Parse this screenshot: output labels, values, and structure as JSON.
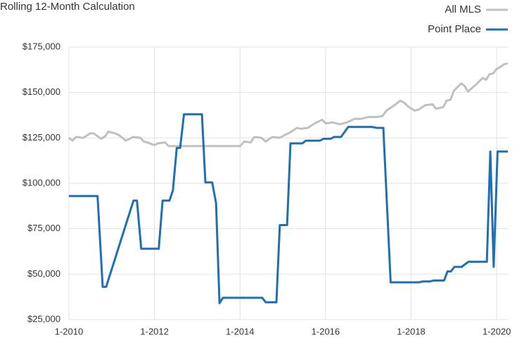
{
  "chart_data": {
    "type": "line",
    "title": "Rolling 12-Month Calculation",
    "xlim": [
      2010,
      2020.26
    ],
    "xticks": [
      {
        "value": 2010,
        "label": "1-2010"
      },
      {
        "value": 2012,
        "label": "1-2012"
      },
      {
        "value": 2014,
        "label": "1-2014"
      },
      {
        "value": 2016,
        "label": "1-2016"
      },
      {
        "value": 2018,
        "label": "1-2018"
      },
      {
        "value": 2020,
        "label": "1-2020"
      }
    ],
    "ylim": [
      25000,
      175000
    ],
    "yticks": [
      {
        "value": 25000,
        "label": "$25,000"
      },
      {
        "value": 50000,
        "label": "$50,000"
      },
      {
        "value": 75000,
        "label": "$75,000"
      },
      {
        "value": 100000,
        "label": "$100,000"
      },
      {
        "value": 125000,
        "label": "$125,000"
      },
      {
        "value": 150000,
        "label": "$150,000"
      },
      {
        "value": 175000,
        "label": "$175,000"
      }
    ],
    "grid": true,
    "legend": "top-right",
    "series": [
      {
        "name": "All MLS",
        "color": "#c0c0c0",
        "x": [
          2010.0,
          2010.08,
          2010.17,
          2010.33,
          2010.5,
          2010.58,
          2010.75,
          2010.85,
          2010.92,
          2011.08,
          2011.17,
          2011.33,
          2011.42,
          2011.5,
          2011.67,
          2011.75,
          2011.83,
          2012.0,
          2012.08,
          2012.25,
          2012.33,
          2012.5,
          2014.0,
          2014.1,
          2014.25,
          2014.33,
          2014.5,
          2014.6,
          2014.75,
          2014.92,
          2015.08,
          2015.17,
          2015.33,
          2015.42,
          2015.58,
          2015.75,
          2015.92,
          2016.0,
          2016.17,
          2016.33,
          2016.5,
          2016.67,
          2016.83,
          2017.0,
          2017.17,
          2017.33,
          2017.42,
          2017.58,
          2017.75,
          2017.83,
          2017.92,
          2018.08,
          2018.17,
          2018.33,
          2018.5,
          2018.58,
          2018.75,
          2018.83,
          2018.92,
          2019.0,
          2019.17,
          2019.25,
          2019.33,
          2019.5,
          2019.67,
          2019.75,
          2019.83,
          2019.92,
          2020.0,
          2020.08,
          2020.17,
          2020.26
        ],
        "values": [
          125000,
          123500,
          125500,
          125000,
          127500,
          127500,
          124500,
          126000,
          128500,
          127500,
          126500,
          123500,
          124500,
          125500,
          125000,
          123000,
          122500,
          121000,
          122000,
          122500,
          120500,
          120500,
          120500,
          123000,
          122500,
          125500,
          125000,
          123000,
          125500,
          125000,
          127000,
          128000,
          130500,
          130000,
          130500,
          133000,
          135000,
          133000,
          133500,
          132500,
          133500,
          135500,
          135500,
          136500,
          136500,
          137000,
          140000,
          142500,
          145500,
          144500,
          142500,
          140000,
          140500,
          143000,
          143500,
          141000,
          142000,
          145500,
          146000,
          151000,
          155000,
          153500,
          150500,
          154000,
          158000,
          157000,
          160000,
          160500,
          163000,
          164000,
          165500,
          166000
        ]
      },
      {
        "name": "Point Place",
        "color": "#1f6fb4",
        "x": [
          2010.0,
          2010.67,
          2010.79,
          2010.87,
          2011.51,
          2011.59,
          2011.69,
          2012.1,
          2012.19,
          2012.35,
          2012.43,
          2012.52,
          2012.6,
          2012.69,
          2013.11,
          2013.19,
          2013.35,
          2013.44,
          2013.52,
          2013.6,
          2014.52,
          2014.6,
          2014.85,
          2014.93,
          2015.1,
          2015.18,
          2015.46,
          2015.54,
          2015.87,
          2015.95,
          2016.12,
          2016.2,
          2016.36,
          2016.53,
          2017.1,
          2017.19,
          2017.35,
          2017.52,
          2018.19,
          2018.27,
          2018.44,
          2018.52,
          2018.77,
          2018.85,
          2018.93,
          2019.01,
          2019.18,
          2019.34,
          2019.77,
          2019.85,
          2019.93,
          2020.02,
          2020.26
        ],
        "values": [
          93000,
          93000,
          43000,
          43000,
          90500,
          90500,
          64000,
          64000,
          90500,
          90500,
          96000,
          119500,
          119500,
          138000,
          138000,
          100500,
          100500,
          89000,
          34000,
          37000,
          37000,
          34500,
          34500,
          77000,
          77000,
          122000,
          122000,
          123500,
          123500,
          124500,
          124500,
          125500,
          125500,
          131000,
          131000,
          130500,
          130500,
          45500,
          45500,
          46000,
          46000,
          46500,
          46500,
          51500,
          51500,
          54000,
          54000,
          56800,
          56800,
          117500,
          54000,
          117500,
          117500
        ]
      }
    ]
  }
}
